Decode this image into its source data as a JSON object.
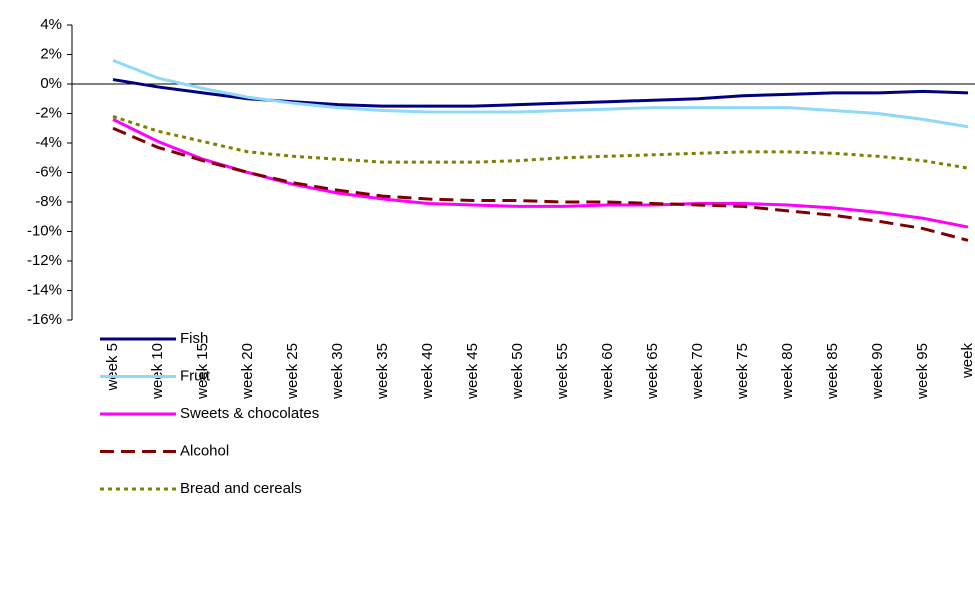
{
  "chart_data": {
    "type": "line",
    "categories": [
      "week 5",
      "week 10",
      "week 15",
      "week 20",
      "week 25",
      "week 30",
      "week 35",
      "week 40",
      "week 45",
      "week 50",
      "week 55",
      "week 60",
      "week 65",
      "week 70",
      "week 75",
      "week 80",
      "week 85",
      "week 90",
      "week 95",
      "week"
    ],
    "series": [
      {
        "name": "Fish",
        "color": "#000080",
        "dash": "solid",
        "values": [
          0.3,
          -0.2,
          -0.6,
          -1.0,
          -1.2,
          -1.4,
          -1.5,
          -1.5,
          -1.5,
          -1.4,
          -1.3,
          -1.2,
          -1.1,
          -1.0,
          -0.8,
          -0.7,
          -0.6,
          -0.6,
          -0.5,
          -0.6
        ]
      },
      {
        "name": "Fruit",
        "color": "#8fd8f8",
        "dash": "solid",
        "values": [
          1.6,
          0.4,
          -0.3,
          -0.9,
          -1.3,
          -1.6,
          -1.8,
          -1.9,
          -1.9,
          -1.9,
          -1.8,
          -1.7,
          -1.6,
          -1.6,
          -1.6,
          -1.6,
          -1.8,
          -2.0,
          -2.4,
          -2.9
        ]
      },
      {
        "name": "Sweets & chocolates",
        "color": "#ff00ff",
        "dash": "solid",
        "values": [
          -2.4,
          -3.9,
          -5.1,
          -6.0,
          -6.8,
          -7.4,
          -7.8,
          -8.1,
          -8.2,
          -8.3,
          -8.3,
          -8.2,
          -8.2,
          -8.1,
          -8.1,
          -8.2,
          -8.4,
          -8.7,
          -9.1,
          -9.7
        ]
      },
      {
        "name": "Alcohol",
        "color": "#800000",
        "dash": "dashed",
        "values": [
          -3.0,
          -4.3,
          -5.2,
          -6.0,
          -6.7,
          -7.2,
          -7.6,
          -7.8,
          -7.9,
          -7.9,
          -8.0,
          -8.0,
          -8.1,
          -8.2,
          -8.3,
          -8.6,
          -8.9,
          -9.3,
          -9.8,
          -10.6
        ]
      },
      {
        "name": "Bread and cereals",
        "color": "#808000",
        "dash": "dotted",
        "values": [
          -2.2,
          -3.2,
          -3.9,
          -4.6,
          -4.9,
          -5.1,
          -5.3,
          -5.3,
          -5.3,
          -5.2,
          -5.0,
          -4.9,
          -4.8,
          -4.7,
          -4.6,
          -4.6,
          -4.7,
          -4.9,
          -5.2,
          -5.7
        ]
      }
    ],
    "ylim": [
      -16,
      4
    ],
    "yticks": [
      {
        "value": -16,
        "label": "-16%"
      },
      {
        "value": -14,
        "label": "-14%"
      },
      {
        "value": -12,
        "label": "-12%"
      },
      {
        "value": -10,
        "label": "-10%"
      },
      {
        "value": -8,
        "label": "-8%"
      },
      {
        "value": -6,
        "label": "-6%"
      },
      {
        "value": -4,
        "label": "-4%"
      },
      {
        "value": -2,
        "label": "-2%"
      },
      {
        "value": 0,
        "label": "0%"
      },
      {
        "value": 2,
        "label": "2%"
      },
      {
        "value": 4,
        "label": "4%"
      }
    ],
    "zero_line": true,
    "legend": "lower left"
  }
}
